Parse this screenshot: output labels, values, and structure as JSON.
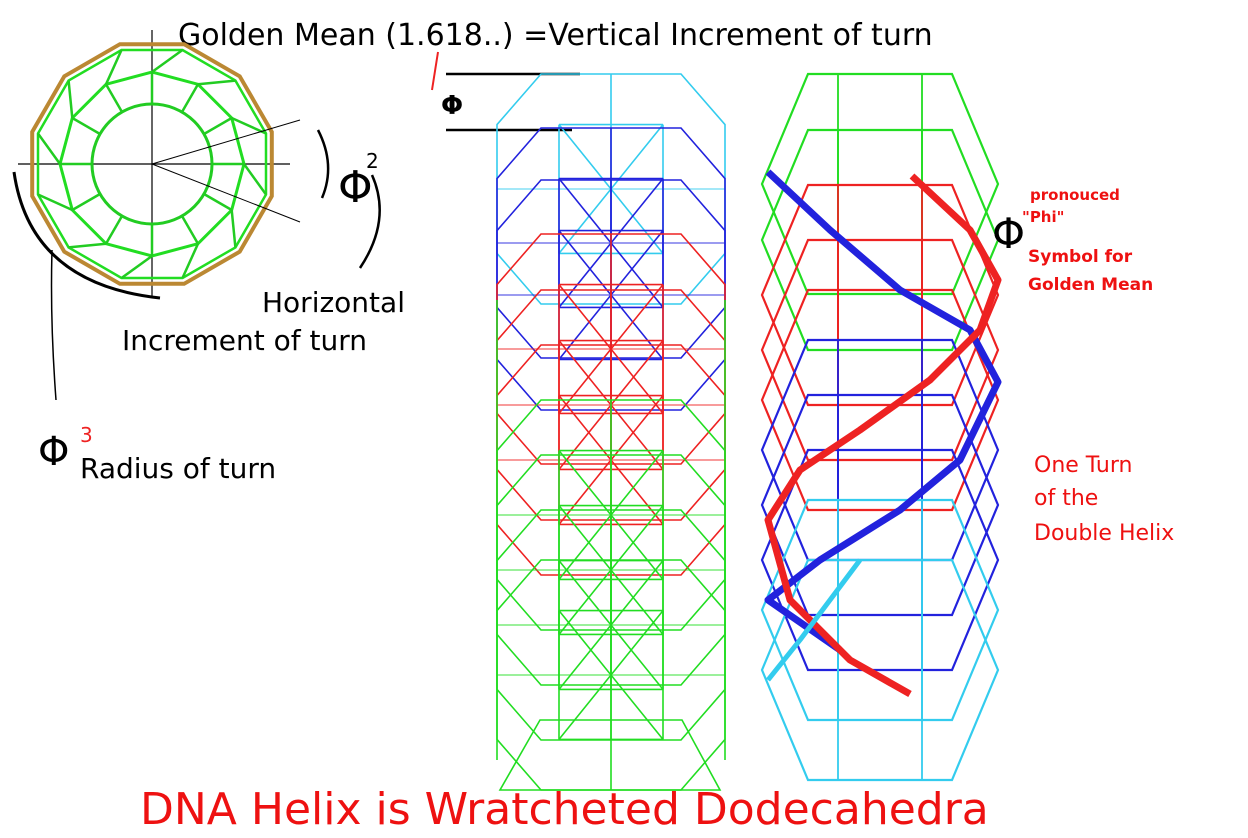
{
  "title": "DNA Helix is Wratcheted Dodecahedra",
  "header": "Golden Mean (1.618..) =Vertical Increment of turn",
  "labels": {
    "phi_symbol": "Φ",
    "phi_squared_exp": "2",
    "phi_cubed_exp": "3",
    "horizontal_1": "Horizontal",
    "horizontal_2": "Increment of turn",
    "radius": "Radius of turn",
    "phi_note_1": "pronouced",
    "phi_note_2": "\"Phi\"",
    "phi_note_3": "Symbol for",
    "phi_note_4": "Golden Mean",
    "turn_1": "One Turn",
    "turn_2": "of the",
    "turn_3": "Double Helix"
  },
  "colors": {
    "green": "#22dd22",
    "blue": "#2222dd",
    "red": "#ee2222",
    "cyan": "#33ccee",
    "dark_green": "#228822",
    "olive": "#bb8833",
    "black": "#000000",
    "text_red": "#ee1111"
  }
}
